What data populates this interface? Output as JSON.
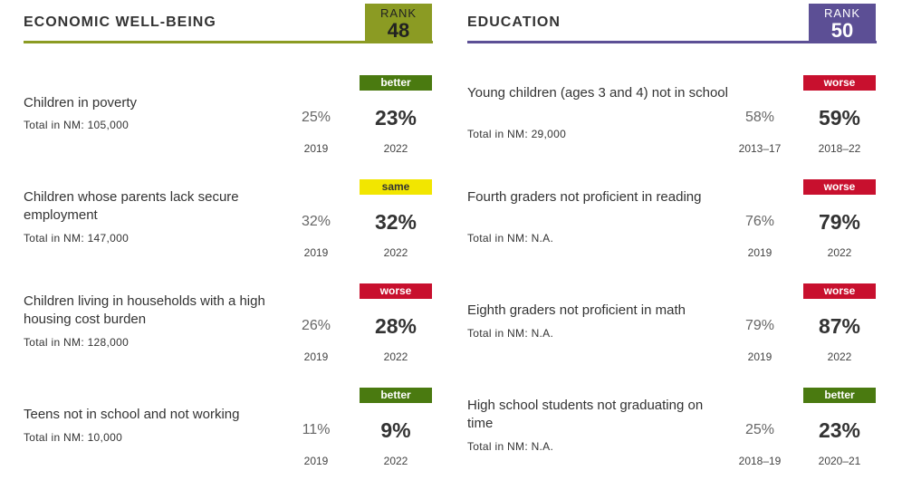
{
  "economic": {
    "title": "ECONOMIC WELL-BEING",
    "rank_label": "RANK",
    "rank": "48",
    "accent_color": "#8b9b23",
    "indicators": [
      {
        "label": "Children in poverty",
        "total": "Total in NM: 105,000",
        "prev_value": "25%",
        "prev_year": "2019",
        "trend": "better",
        "curr_value": "23%",
        "curr_year": "2022"
      },
      {
        "label": "Children whose parents lack secure employment",
        "total": "Total in NM: 147,000",
        "prev_value": "32%",
        "prev_year": "2019",
        "trend": "same",
        "curr_value": "32%",
        "curr_year": "2022"
      },
      {
        "label": "Children living in households with a high housing cost burden",
        "total": "Total in NM: 128,000",
        "prev_value": "26%",
        "prev_year": "2019",
        "trend": "worse",
        "curr_value": "28%",
        "curr_year": "2022"
      },
      {
        "label": "Teens not in school and not working",
        "total": "Total in NM: 10,000",
        "prev_value": "11%",
        "prev_year": "2019",
        "trend": "better",
        "curr_value": "9%",
        "curr_year": "2022"
      }
    ]
  },
  "education": {
    "title": "EDUCATION",
    "rank_label": "RANK",
    "rank": "50",
    "accent_color": "#5c4f95",
    "indicators": [
      {
        "label": "Young children (ages 3 and 4) not in school",
        "total": "Total in NM: 29,000",
        "prev_value": "58%",
        "prev_year": "2013–17",
        "trend": "worse",
        "curr_value": "59%",
        "curr_year": "2018–22"
      },
      {
        "label": "Fourth graders not proficient in reading",
        "total": "Total in NM: N.A.",
        "prev_value": "76%",
        "prev_year": "2019",
        "trend": "worse",
        "curr_value": "79%",
        "curr_year": "2022"
      },
      {
        "label": "Eighth graders not proficient in math",
        "total": "Total in NM: N.A.",
        "prev_value": "79%",
        "prev_year": "2019",
        "trend": "worse",
        "curr_value": "87%",
        "curr_year": "2022"
      },
      {
        "label": "High school students not graduating on time",
        "total": "Total in NM: N.A.",
        "prev_value": "25%",
        "prev_year": "2018–19",
        "trend": "better",
        "curr_value": "23%",
        "curr_year": "2020–21"
      }
    ]
  },
  "trend_colors": {
    "better": "#4a7a10",
    "worse": "#c8102e",
    "same": "#f2e600"
  }
}
